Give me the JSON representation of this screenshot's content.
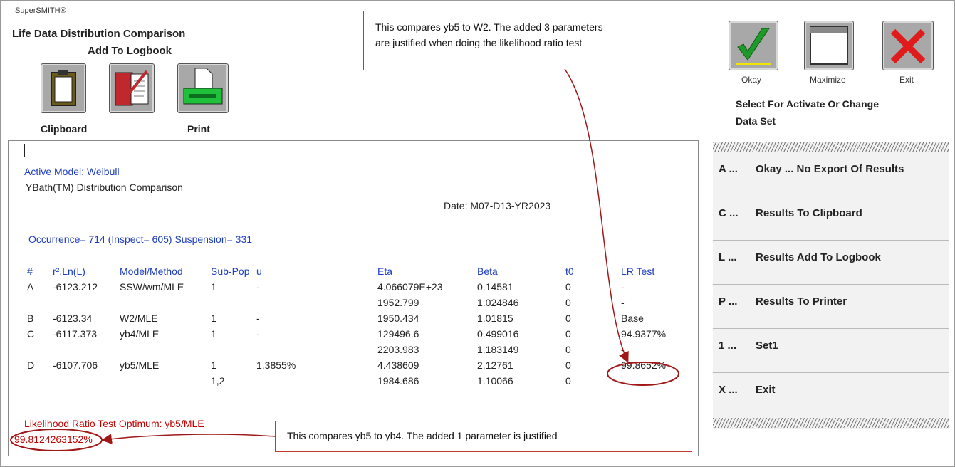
{
  "app": "SuperSMITH®",
  "title": "Life Data Distribution Comparison",
  "subtitle": "Add To Logbook",
  "toolbar_labels": [
    "Clipboard",
    "Print"
  ],
  "window_buttons": [
    "Okay",
    "Maximize",
    "Exit"
  ],
  "select_prompt": [
    "Select For Activate Or Change",
    "Data Set"
  ],
  "report": {
    "active_model": "Active Model: Weibull",
    "heading": "YBath(TM) Distribution Comparison",
    "date": "Date: M07-D13-YR2023",
    "counts": "Occurrence= 714 (Inspect= 605) Suspension= 331",
    "table": {
      "columns": [
        "#",
        "r²,Ln(L)",
        "Model/Method",
        "Sub-Pop",
        "u",
        "Eta",
        "Beta",
        "t0",
        "LR Test"
      ],
      "rows": [
        [
          "A",
          "-6123.212",
          "SSW/wm/MLE",
          "1",
          "-",
          "4.066079E+23",
          "0.14581",
          "0",
          "-"
        ],
        [
          null,
          null,
          null,
          null,
          null,
          "1952.799",
          "1.024846",
          "0",
          "-"
        ],
        [
          "B",
          "-6123.34",
          "W2/MLE",
          "1",
          "-",
          "1950.434",
          "1.01815",
          "0",
          "Base"
        ],
        [
          "C",
          "-6117.373",
          "yb4/MLE",
          "1",
          "-",
          "129496.6",
          "0.499016",
          "0",
          "94.9377%"
        ],
        [
          null,
          null,
          null,
          null,
          null,
          "2203.983",
          "1.183149",
          "0",
          "-"
        ],
        [
          "D",
          "-6107.706",
          "yb5/MLE",
          "1",
          "1.3855%",
          "4.438609",
          "2.12761",
          "0",
          "99.8652%"
        ],
        [
          null,
          null,
          null,
          "1,2",
          null,
          "1984.686",
          "1.10066",
          "0",
          "-"
        ]
      ]
    },
    "optimum_label": "Likelihood Ratio Test Optimum:  yb5/MLE",
    "optimum_value": "99.8124263152%"
  },
  "callouts": {
    "top": [
      "This compares yb5 to W2.  The added 3 parameters",
      "are justified when doing the likelihood ratio test"
    ],
    "bottom": "This compares yb5 to yb4.  The added 1 parameter is justified"
  },
  "menu": [
    {
      "key": "A ...",
      "label": "Okay ... No Export Of Results"
    },
    {
      "key": "C ...",
      "label": "Results To Clipboard"
    },
    {
      "key": "L ...",
      "label": "Results Add To Logbook"
    },
    {
      "key": "P ...",
      "label": "Results To Printer"
    },
    {
      "key": "1 ...",
      "label": "Set1"
    },
    {
      "key": "X ...",
      "label": "Exit"
    }
  ]
}
